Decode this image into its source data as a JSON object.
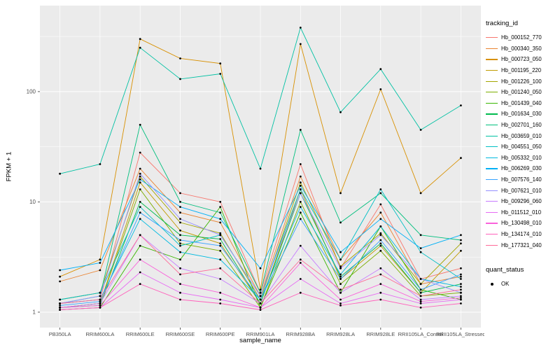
{
  "figure": {
    "background": "#FFFFFF",
    "panel_background": "#EBEBEB",
    "grid_color": "#FFFFFF",
    "tick_mark_color": "#333333",
    "tick_text_color": "#4D4D4D",
    "text_color": "#000000",
    "point_color": "#000000"
  },
  "legend": {
    "tracking_title": "tracking_id",
    "quant_title": "quant_status",
    "quant_ok_label": "OK"
  },
  "chart_data": {
    "type": "line",
    "title": "",
    "xlabel": "sample_name",
    "ylabel": "FPKM + 1",
    "y_scale": "log10",
    "y_ticks": [
      1,
      10,
      100
    ],
    "ylim_log10": [
      -0.14,
      2.78
    ],
    "grid": true,
    "legend_position": "right",
    "categories": [
      "PB350LA",
      "RRIM600LA",
      "RRIM600LE",
      "RRIM600SE",
      "RRIM600PE",
      "RRIM901LA",
      "RRIM928BA",
      "RRIM928LA",
      "RRIM928LE",
      "RRII105LA_Control",
      "RRII105LA_Stressed"
    ],
    "series": [
      {
        "name": "Hb_000152_770",
        "color": "#F8766D",
        "values": [
          1.2,
          1.3,
          28,
          12,
          10,
          1.5,
          22,
          2.5,
          9.5,
          2.0,
          2.5
        ]
      },
      {
        "name": "Hb_000340_350",
        "color": "#EA8331",
        "values": [
          1.9,
          2.4,
          20,
          8,
          6.5,
          1.4,
          17,
          3.0,
          8,
          1.8,
          2.1
        ]
      },
      {
        "name": "Hb_000723_050",
        "color": "#D89000",
        "values": [
          2.1,
          3.0,
          300,
          200,
          180,
          1.6,
          270,
          12,
          105,
          12,
          25
        ]
      },
      {
        "name": "Hb_001195_220",
        "color": "#C09B00",
        "values": [
          1.1,
          1.2,
          15,
          5.5,
          4.2,
          1.2,
          13,
          2.0,
          4.0,
          1.5,
          3.6
        ]
      },
      {
        "name": "Hb_001226_100",
        "color": "#A3A500",
        "values": [
          1.3,
          1.5,
          17,
          6.5,
          5.2,
          1.3,
          15,
          2.6,
          5.2,
          1.8,
          4.2
        ]
      },
      {
        "name": "Hb_001240_050",
        "color": "#7CAE00",
        "values": [
          1.1,
          1.2,
          13,
          4.2,
          3.6,
          1.1,
          10,
          1.8,
          3.6,
          1.4,
          1.5
        ]
      },
      {
        "name": "Hb_001439_040",
        "color": "#39B600",
        "values": [
          1.05,
          1.1,
          4.0,
          3.0,
          9.0,
          1.1,
          8.0,
          1.5,
          6.0,
          1.6,
          1.3
        ]
      },
      {
        "name": "Hb_001634_030",
        "color": "#00BB4E",
        "values": [
          1.1,
          1.15,
          10,
          5.0,
          4.6,
          1.2,
          12,
          2.1,
          4.2,
          1.5,
          1.8
        ]
      },
      {
        "name": "Hb_002701_160",
        "color": "#00BF7D",
        "values": [
          1.2,
          1.4,
          50,
          10,
          8.0,
          1.5,
          45,
          6.5,
          12,
          5.0,
          4.5
        ]
      },
      {
        "name": "Hb_003659_010",
        "color": "#00C1A3",
        "values": [
          18,
          22,
          250,
          130,
          145,
          20,
          380,
          65,
          160,
          45,
          75
        ]
      },
      {
        "name": "Hb_004551_050",
        "color": "#00BFC4",
        "values": [
          1.3,
          1.5,
          9.0,
          4.0,
          5.0,
          1.4,
          13,
          3.0,
          13,
          3.5,
          2.0
        ]
      },
      {
        "name": "Hb_005332_010",
        "color": "#00BAE0",
        "values": [
          1.2,
          1.3,
          7.0,
          3.5,
          3.0,
          1.3,
          9.0,
          2.2,
          6.0,
          2.0,
          1.7
        ]
      },
      {
        "name": "Hb_006269_030",
        "color": "#00B0F6",
        "values": [
          2.4,
          2.8,
          16,
          9.0,
          7.0,
          2.5,
          14,
          3.5,
          7.0,
          3.8,
          5.0
        ]
      },
      {
        "name": "Hb_007576_140",
        "color": "#35A2FF",
        "values": [
          1.15,
          1.25,
          8.0,
          4.5,
          4.0,
          1.3,
          7.0,
          2.0,
          4.5,
          1.6,
          2.2
        ]
      },
      {
        "name": "Hb_007621_010",
        "color": "#9590FF",
        "values": [
          1.2,
          1.4,
          18,
          7.0,
          5.0,
          1.4,
          12,
          2.5,
          5.0,
          2.0,
          1.5
        ]
      },
      {
        "name": "Hb_009296_060",
        "color": "#C77CFF",
        "values": [
          1.1,
          1.2,
          5.0,
          2.5,
          2.0,
          1.2,
          4.0,
          1.5,
          2.5,
          1.3,
          1.4
        ]
      },
      {
        "name": "Hb_011512_010",
        "color": "#E76BF3",
        "values": [
          1.05,
          1.1,
          2.3,
          1.5,
          1.3,
          1.1,
          2.0,
          1.2,
          1.5,
          1.2,
          1.3
        ]
      },
      {
        "name": "Hb_130498_010",
        "color": "#FA62DB",
        "values": [
          1.1,
          1.15,
          3.0,
          1.8,
          1.5,
          1.1,
          2.8,
          1.3,
          1.8,
          1.25,
          1.35
        ]
      },
      {
        "name": "Hb_134174_010",
        "color": "#FF62BC",
        "values": [
          1.05,
          1.1,
          1.8,
          1.3,
          1.2,
          1.05,
          1.5,
          1.15,
          1.3,
          1.1,
          1.2
        ]
      },
      {
        "name": "Hb_177321_040",
        "color": "#FF6A98",
        "values": [
          1.2,
          1.3,
          5.0,
          2.2,
          2.5,
          1.2,
          3.0,
          1.6,
          2.2,
          1.4,
          1.6
        ]
      }
    ]
  }
}
